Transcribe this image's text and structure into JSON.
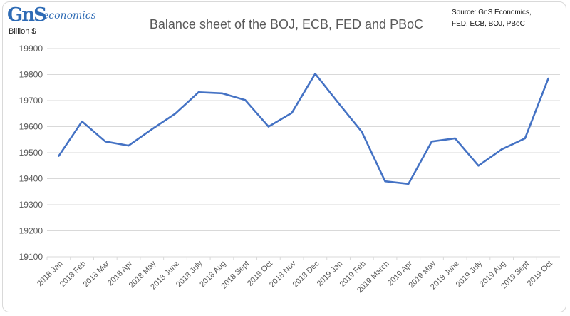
{
  "header": {
    "logo_main": "GnS",
    "logo_sub": "economics",
    "title": "Balance sheet of the BOJ, ECB, FED and PBoC",
    "unit": "Billion $",
    "source_line1": "Source: GnS Economics,",
    "source_line2": "FED, ECB, BOJ, PBoC"
  },
  "colors": {
    "line": "#4472c4",
    "grid": "#d9d9d9",
    "axis_text": "#595959"
  },
  "chart_data": {
    "type": "line",
    "title": "Balance sheet of the BOJ, ECB, FED and PBoC",
    "ylabel": "Billion $",
    "xlabel": "",
    "ylim": [
      19100,
      19900
    ],
    "yticks": [
      19100,
      19200,
      19300,
      19400,
      19500,
      19600,
      19700,
      19800,
      19900
    ],
    "grid": true,
    "categories": [
      "2018 Jan",
      "2018 Feb",
      "2018 Mar",
      "2018 Apr",
      "2018 May",
      "2018 June",
      "2018 July",
      "2018 Aug",
      "2018 Sept",
      "2018 Oct",
      "2018 Nov",
      "2018 Dec",
      "2019 Jan",
      "2019 Feb",
      "2019 March",
      "2019 Apr",
      "2019 May",
      "2019 June",
      "2019 July",
      "2019 Aug",
      "2019 Sept",
      "2019 Oct"
    ],
    "series": [
      {
        "values": [
          19487,
          19620,
          19543,
          19527,
          19590,
          19650,
          19732,
          19728,
          19702,
          19600,
          19653,
          19803,
          19690,
          19580,
          19390,
          19380,
          19543,
          19555,
          19450,
          19513,
          19555,
          19785
        ]
      }
    ]
  }
}
